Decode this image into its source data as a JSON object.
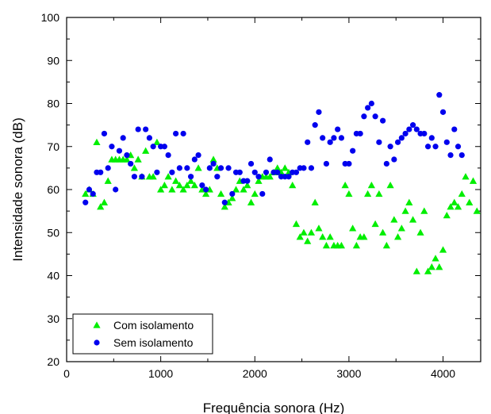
{
  "chart_data": {
    "type": "scatter",
    "xlabel": "Frequência sonora (Hz)",
    "ylabel": "Intensidade sonora (dB)",
    "xlim": [
      0,
      4400
    ],
    "ylim": [
      20,
      100
    ],
    "x_ticks": [
      0,
      1000,
      2000,
      3000,
      4000
    ],
    "y_ticks": [
      20,
      30,
      40,
      50,
      60,
      70,
      80,
      90,
      100
    ],
    "grid": false,
    "legend": "bottom-left",
    "series": [
      {
        "name": "Com isolamento",
        "marker": "triangle",
        "color": "#00ee00",
        "points": [
          [
            200,
            59
          ],
          [
            240,
            60
          ],
          [
            280,
            59
          ],
          [
            320,
            71
          ],
          [
            360,
            56
          ],
          [
            400,
            57
          ],
          [
            440,
            62
          ],
          [
            480,
            67
          ],
          [
            520,
            67
          ],
          [
            560,
            67
          ],
          [
            600,
            67
          ],
          [
            640,
            67
          ],
          [
            680,
            68
          ],
          [
            720,
            65
          ],
          [
            760,
            67
          ],
          [
            800,
            63
          ],
          [
            840,
            69
          ],
          [
            880,
            63
          ],
          [
            920,
            63
          ],
          [
            960,
            71
          ],
          [
            1000,
            60
          ],
          [
            1040,
            61
          ],
          [
            1080,
            63
          ],
          [
            1120,
            60
          ],
          [
            1160,
            62
          ],
          [
            1200,
            61
          ],
          [
            1240,
            60
          ],
          [
            1280,
            61
          ],
          [
            1320,
            62
          ],
          [
            1360,
            61
          ],
          [
            1400,
            65
          ],
          [
            1440,
            60
          ],
          [
            1480,
            59
          ],
          [
            1520,
            60
          ],
          [
            1560,
            67
          ],
          [
            1600,
            65
          ],
          [
            1640,
            59
          ],
          [
            1680,
            56
          ],
          [
            1720,
            57
          ],
          [
            1760,
            58
          ],
          [
            1800,
            60
          ],
          [
            1840,
            62
          ],
          [
            1880,
            60
          ],
          [
            1920,
            61
          ],
          [
            1960,
            57
          ],
          [
            2000,
            59
          ],
          [
            2040,
            62
          ],
          [
            2080,
            63
          ],
          [
            2120,
            63
          ],
          [
            2160,
            63
          ],
          [
            2200,
            64
          ],
          [
            2240,
            65
          ],
          [
            2280,
            64
          ],
          [
            2320,
            65
          ],
          [
            2360,
            64
          ],
          [
            2400,
            61
          ],
          [
            2440,
            52
          ],
          [
            2480,
            49
          ],
          [
            2520,
            50
          ],
          [
            2560,
            48
          ],
          [
            2600,
            50
          ],
          [
            2640,
            57
          ],
          [
            2680,
            51
          ],
          [
            2720,
            49
          ],
          [
            2760,
            47
          ],
          [
            2800,
            49
          ],
          [
            2840,
            47
          ],
          [
            2880,
            47
          ],
          [
            2920,
            47
          ],
          [
            2960,
            61
          ],
          [
            3000,
            59
          ],
          [
            3040,
            51
          ],
          [
            3080,
            47
          ],
          [
            3120,
            49
          ],
          [
            3160,
            49
          ],
          [
            3200,
            59
          ],
          [
            3240,
            61
          ],
          [
            3280,
            52
          ],
          [
            3320,
            59
          ],
          [
            3360,
            50
          ],
          [
            3400,
            47
          ],
          [
            3440,
            61
          ],
          [
            3480,
            53
          ],
          [
            3520,
            49
          ],
          [
            3560,
            51
          ],
          [
            3600,
            55
          ],
          [
            3640,
            57
          ],
          [
            3680,
            53
          ],
          [
            3720,
            41
          ],
          [
            3760,
            50
          ],
          [
            3800,
            55
          ],
          [
            3840,
            41
          ],
          [
            3880,
            42
          ],
          [
            3920,
            44
          ],
          [
            3960,
            42
          ],
          [
            4000,
            46
          ],
          [
            4040,
            54
          ],
          [
            4080,
            56
          ],
          [
            4120,
            57
          ],
          [
            4160,
            56
          ],
          [
            4200,
            59
          ],
          [
            4240,
            63
          ],
          [
            4280,
            57
          ],
          [
            4320,
            62
          ],
          [
            4360,
            55
          ]
        ]
      },
      {
        "name": "Sem isolamento",
        "marker": "circle",
        "color": "#0000ee",
        "points": [
          [
            200,
            57
          ],
          [
            240,
            60
          ],
          [
            280,
            59
          ],
          [
            320,
            64
          ],
          [
            360,
            64
          ],
          [
            400,
            73
          ],
          [
            440,
            65
          ],
          [
            480,
            70
          ],
          [
            520,
            60
          ],
          [
            560,
            69
          ],
          [
            600,
            72
          ],
          [
            640,
            68
          ],
          [
            680,
            66
          ],
          [
            720,
            63
          ],
          [
            760,
            74
          ],
          [
            800,
            63
          ],
          [
            840,
            74
          ],
          [
            880,
            72
          ],
          [
            920,
            70
          ],
          [
            960,
            64
          ],
          [
            1000,
            70
          ],
          [
            1040,
            70
          ],
          [
            1080,
            68
          ],
          [
            1120,
            64
          ],
          [
            1160,
            73
          ],
          [
            1200,
            65
          ],
          [
            1240,
            73
          ],
          [
            1280,
            65
          ],
          [
            1320,
            63
          ],
          [
            1360,
            67
          ],
          [
            1400,
            68
          ],
          [
            1440,
            61
          ],
          [
            1480,
            60
          ],
          [
            1520,
            65
          ],
          [
            1560,
            66
          ],
          [
            1600,
            63
          ],
          [
            1640,
            65
          ],
          [
            1680,
            57
          ],
          [
            1720,
            65
          ],
          [
            1760,
            59
          ],
          [
            1800,
            64
          ],
          [
            1840,
            64
          ],
          [
            1880,
            62
          ],
          [
            1920,
            62
          ],
          [
            1960,
            66
          ],
          [
            2000,
            64
          ],
          [
            2040,
            63
          ],
          [
            2080,
            59
          ],
          [
            2120,
            64
          ],
          [
            2160,
            67
          ],
          [
            2200,
            64
          ],
          [
            2240,
            64
          ],
          [
            2280,
            63
          ],
          [
            2320,
            63
          ],
          [
            2360,
            63
          ],
          [
            2400,
            64
          ],
          [
            2440,
            64
          ],
          [
            2480,
            65
          ],
          [
            2520,
            65
          ],
          [
            2560,
            71
          ],
          [
            2600,
            65
          ],
          [
            2640,
            75
          ],
          [
            2680,
            78
          ],
          [
            2720,
            72
          ],
          [
            2760,
            66
          ],
          [
            2800,
            71
          ],
          [
            2840,
            72
          ],
          [
            2880,
            74
          ],
          [
            2920,
            72
          ],
          [
            2960,
            66
          ],
          [
            3000,
            66
          ],
          [
            3040,
            69
          ],
          [
            3080,
            73
          ],
          [
            3120,
            73
          ],
          [
            3160,
            77
          ],
          [
            3200,
            79
          ],
          [
            3240,
            80
          ],
          [
            3280,
            77
          ],
          [
            3320,
            71
          ],
          [
            3360,
            76
          ],
          [
            3400,
            66
          ],
          [
            3440,
            70
          ],
          [
            3480,
            67
          ],
          [
            3520,
            71
          ],
          [
            3560,
            72
          ],
          [
            3600,
            73
          ],
          [
            3640,
            74
          ],
          [
            3680,
            75
          ],
          [
            3720,
            74
          ],
          [
            3760,
            73
          ],
          [
            3800,
            73
          ],
          [
            3840,
            70
          ],
          [
            3880,
            72
          ],
          [
            3920,
            70
          ],
          [
            3960,
            82
          ],
          [
            4000,
            78
          ],
          [
            4040,
            71
          ],
          [
            4080,
            68
          ],
          [
            4120,
            74
          ],
          [
            4160,
            70
          ],
          [
            4200,
            68
          ]
        ]
      }
    ]
  }
}
